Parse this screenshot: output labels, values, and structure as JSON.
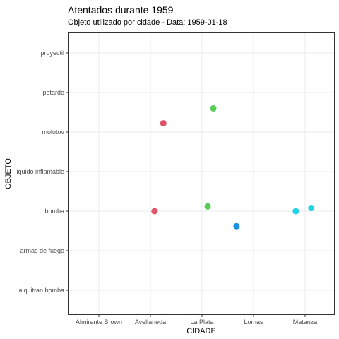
{
  "chart_data": {
    "type": "scatter",
    "title": "Atentados durante 1959",
    "subtitle": "Objeto utilizado por cidade - Data: 1959-01-18",
    "xlabel": "CIDADE",
    "ylabel": "OBJETO",
    "x_categories": [
      "Almirante Brown",
      "Avellaneda",
      "La Plata",
      "Lomas",
      "Matanza"
    ],
    "y_categories": [
      "alquitran bomba",
      "armas de fuego",
      "bomba",
      "liquido inflamable",
      "molotov",
      "petardo",
      "proyectil"
    ],
    "grid": true,
    "points": [
      {
        "x": "Avellaneda",
        "y": "molotov",
        "x_jitter": 0.25,
        "y_jitter": 0.22,
        "color": "#e0546a"
      },
      {
        "x": "Avellaneda",
        "y": "bomba",
        "x_jitter": 0.08,
        "y_jitter": 0.0,
        "color": "#e0546a"
      },
      {
        "x": "La Plata",
        "y": "petardo",
        "x_jitter": 0.22,
        "y_jitter": -0.4,
        "color": "#55cc55"
      },
      {
        "x": "La Plata",
        "y": "bomba",
        "x_jitter": 0.11,
        "y_jitter": 0.12,
        "color": "#55cc55"
      },
      {
        "x": "Lomas",
        "y": "bomba",
        "x_jitter": -0.33,
        "y_jitter": -0.38,
        "color": "#1e90e0"
      },
      {
        "x": "Matanza",
        "y": "bomba",
        "x_jitter": -0.18,
        "y_jitter": 0.0,
        "color": "#22d3e6"
      },
      {
        "x": "Matanza",
        "y": "bomba",
        "x_jitter": 0.12,
        "y_jitter": 0.08,
        "color": "#22d3e6"
      }
    ]
  }
}
